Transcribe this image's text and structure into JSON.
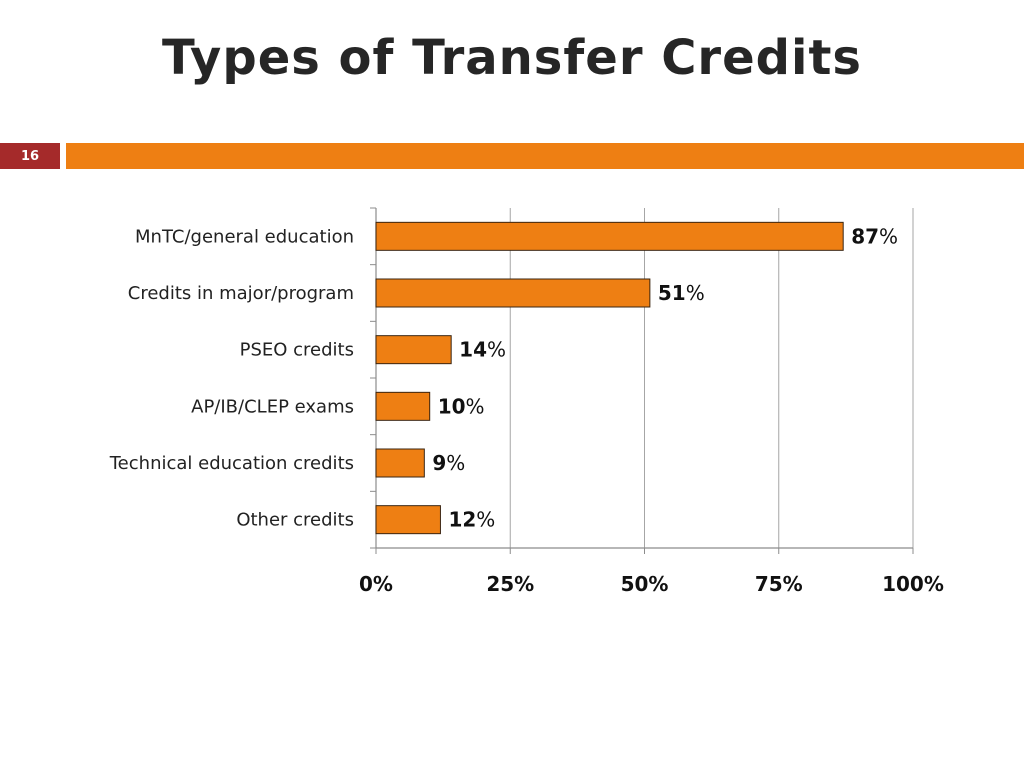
{
  "slide": {
    "title": "Types of Transfer Credits",
    "number": "16"
  },
  "colors": {
    "accent": "#ee7f13",
    "number_box": "#a52a2a",
    "bar_fill": "#ee7f13",
    "bar_stroke": "#3a2410",
    "grid": "#a6a6a6"
  },
  "chart_data": {
    "type": "bar",
    "orientation": "horizontal",
    "categories": [
      "MnTC/general education",
      "Credits in major/program",
      "PSEO credits",
      "AP/IB/CLEP exams",
      "Technical education credits",
      "Other credits"
    ],
    "values": [
      87,
      51,
      14,
      10,
      9,
      12
    ],
    "value_suffix": "%",
    "xlim": [
      0,
      100
    ],
    "xticks": [
      0,
      25,
      50,
      75,
      100
    ],
    "xtick_labels": [
      "0%",
      "25%",
      "50%",
      "75%",
      "100%"
    ],
    "grid": "vertical",
    "legend": "none"
  }
}
